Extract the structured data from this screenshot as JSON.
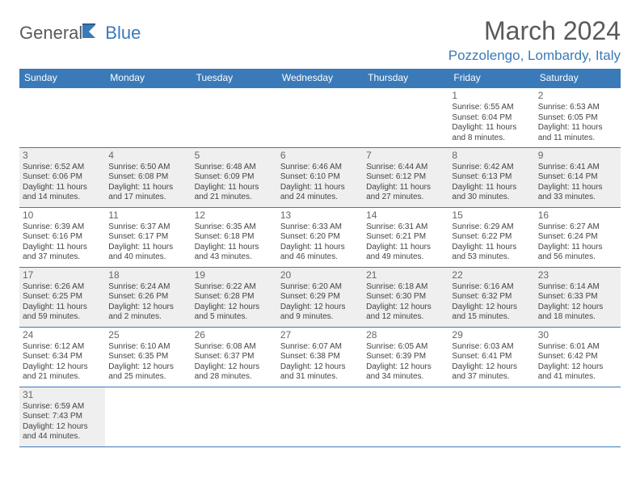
{
  "logo": {
    "text1": "General",
    "text2": "Blue"
  },
  "title": "March 2024",
  "location": "Pozzolengo, Lombardy, Italy",
  "colors": {
    "header_bg": "#3a7ab8",
    "header_text": "#ffffff",
    "alt_row_bg": "#efefef",
    "text": "#444444",
    "title_color": "#5a5a5a",
    "location_color": "#3a7ab8",
    "border": "#3a7ab8"
  },
  "fonts": {
    "title_size": 32,
    "location_size": 17,
    "header_size": 12,
    "daynum_size": 12,
    "body_size": 10
  },
  "dayHeaders": [
    "Sunday",
    "Monday",
    "Tuesday",
    "Wednesday",
    "Thursday",
    "Friday",
    "Saturday"
  ],
  "weeks": [
    {
      "alt": false,
      "days": [
        null,
        null,
        null,
        null,
        null,
        {
          "n": "1",
          "sunrise": "6:55 AM",
          "sunset": "6:04 PM",
          "daylight": "11 hours and 8 minutes."
        },
        {
          "n": "2",
          "sunrise": "6:53 AM",
          "sunset": "6:05 PM",
          "daylight": "11 hours and 11 minutes."
        }
      ]
    },
    {
      "alt": true,
      "days": [
        {
          "n": "3",
          "sunrise": "6:52 AM",
          "sunset": "6:06 PM",
          "daylight": "11 hours and 14 minutes."
        },
        {
          "n": "4",
          "sunrise": "6:50 AM",
          "sunset": "6:08 PM",
          "daylight": "11 hours and 17 minutes."
        },
        {
          "n": "5",
          "sunrise": "6:48 AM",
          "sunset": "6:09 PM",
          "daylight": "11 hours and 21 minutes."
        },
        {
          "n": "6",
          "sunrise": "6:46 AM",
          "sunset": "6:10 PM",
          "daylight": "11 hours and 24 minutes."
        },
        {
          "n": "7",
          "sunrise": "6:44 AM",
          "sunset": "6:12 PM",
          "daylight": "11 hours and 27 minutes."
        },
        {
          "n": "8",
          "sunrise": "6:42 AM",
          "sunset": "6:13 PM",
          "daylight": "11 hours and 30 minutes."
        },
        {
          "n": "9",
          "sunrise": "6:41 AM",
          "sunset": "6:14 PM",
          "daylight": "11 hours and 33 minutes."
        }
      ]
    },
    {
      "alt": false,
      "days": [
        {
          "n": "10",
          "sunrise": "6:39 AM",
          "sunset": "6:16 PM",
          "daylight": "11 hours and 37 minutes."
        },
        {
          "n": "11",
          "sunrise": "6:37 AM",
          "sunset": "6:17 PM",
          "daylight": "11 hours and 40 minutes."
        },
        {
          "n": "12",
          "sunrise": "6:35 AM",
          "sunset": "6:18 PM",
          "daylight": "11 hours and 43 minutes."
        },
        {
          "n": "13",
          "sunrise": "6:33 AM",
          "sunset": "6:20 PM",
          "daylight": "11 hours and 46 minutes."
        },
        {
          "n": "14",
          "sunrise": "6:31 AM",
          "sunset": "6:21 PM",
          "daylight": "11 hours and 49 minutes."
        },
        {
          "n": "15",
          "sunrise": "6:29 AM",
          "sunset": "6:22 PM",
          "daylight": "11 hours and 53 minutes."
        },
        {
          "n": "16",
          "sunrise": "6:27 AM",
          "sunset": "6:24 PM",
          "daylight": "11 hours and 56 minutes."
        }
      ]
    },
    {
      "alt": true,
      "days": [
        {
          "n": "17",
          "sunrise": "6:26 AM",
          "sunset": "6:25 PM",
          "daylight": "11 hours and 59 minutes."
        },
        {
          "n": "18",
          "sunrise": "6:24 AM",
          "sunset": "6:26 PM",
          "daylight": "12 hours and 2 minutes."
        },
        {
          "n": "19",
          "sunrise": "6:22 AM",
          "sunset": "6:28 PM",
          "daylight": "12 hours and 5 minutes."
        },
        {
          "n": "20",
          "sunrise": "6:20 AM",
          "sunset": "6:29 PM",
          "daylight": "12 hours and 9 minutes."
        },
        {
          "n": "21",
          "sunrise": "6:18 AM",
          "sunset": "6:30 PM",
          "daylight": "12 hours and 12 minutes."
        },
        {
          "n": "22",
          "sunrise": "6:16 AM",
          "sunset": "6:32 PM",
          "daylight": "12 hours and 15 minutes."
        },
        {
          "n": "23",
          "sunrise": "6:14 AM",
          "sunset": "6:33 PM",
          "daylight": "12 hours and 18 minutes."
        }
      ]
    },
    {
      "alt": false,
      "days": [
        {
          "n": "24",
          "sunrise": "6:12 AM",
          "sunset": "6:34 PM",
          "daylight": "12 hours and 21 minutes."
        },
        {
          "n": "25",
          "sunrise": "6:10 AM",
          "sunset": "6:35 PM",
          "daylight": "12 hours and 25 minutes."
        },
        {
          "n": "26",
          "sunrise": "6:08 AM",
          "sunset": "6:37 PM",
          "daylight": "12 hours and 28 minutes."
        },
        {
          "n": "27",
          "sunrise": "6:07 AM",
          "sunset": "6:38 PM",
          "daylight": "12 hours and 31 minutes."
        },
        {
          "n": "28",
          "sunrise": "6:05 AM",
          "sunset": "6:39 PM",
          "daylight": "12 hours and 34 minutes."
        },
        {
          "n": "29",
          "sunrise": "6:03 AM",
          "sunset": "6:41 PM",
          "daylight": "12 hours and 37 minutes."
        },
        {
          "n": "30",
          "sunrise": "6:01 AM",
          "sunset": "6:42 PM",
          "daylight": "12 hours and 41 minutes."
        }
      ]
    },
    {
      "alt": true,
      "days": [
        {
          "n": "31",
          "sunrise": "6:59 AM",
          "sunset": "7:43 PM",
          "daylight": "12 hours and 44 minutes."
        },
        null,
        null,
        null,
        null,
        null,
        null
      ]
    }
  ],
  "labels": {
    "sunrise": "Sunrise: ",
    "sunset": "Sunset: ",
    "daylight": "Daylight: "
  }
}
